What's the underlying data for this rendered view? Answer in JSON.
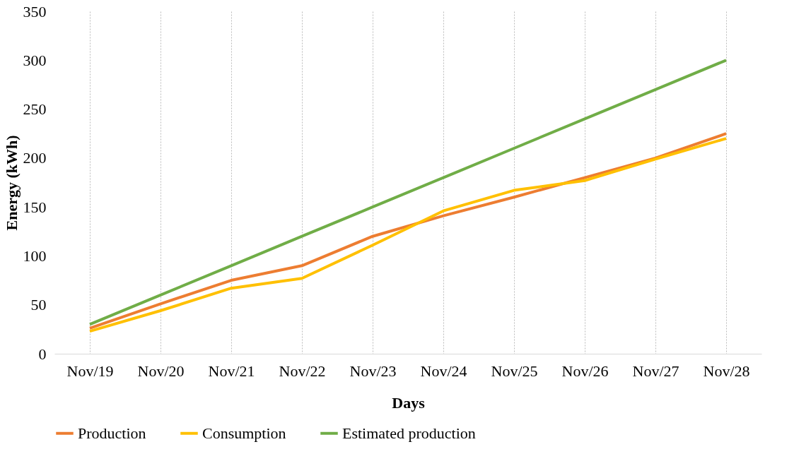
{
  "chart_data": {
    "type": "line",
    "xlabel": "Days",
    "ylabel": "Energy (kWh)",
    "categories": [
      "Nov/19",
      "Nov/20",
      "Nov/21",
      "Nov/22",
      "Nov/23",
      "Nov/24",
      "Nov/25",
      "Nov/26",
      "Nov/27",
      "Nov/28"
    ],
    "series": [
      {
        "name": "Production",
        "color": "#ed7d31",
        "values": [
          26,
          51,
          75,
          90,
          120,
          141,
          160,
          180,
          200,
          225
        ]
      },
      {
        "name": "Consumption",
        "color": "#ffc000",
        "values": [
          23,
          44,
          67,
          77,
          111,
          146,
          167,
          177,
          199,
          220
        ]
      },
      {
        "name": "Estimated production",
        "color": "#70ad47",
        "values": [
          30,
          60,
          90,
          120,
          150,
          180,
          210,
          240,
          270,
          300
        ]
      }
    ],
    "ylim": [
      0,
      350
    ],
    "yticks": [
      0,
      50,
      100,
      150,
      200,
      250,
      300,
      350
    ],
    "grid": "x",
    "legend": "bottom",
    "marker": "none",
    "line_style": "solid"
  }
}
